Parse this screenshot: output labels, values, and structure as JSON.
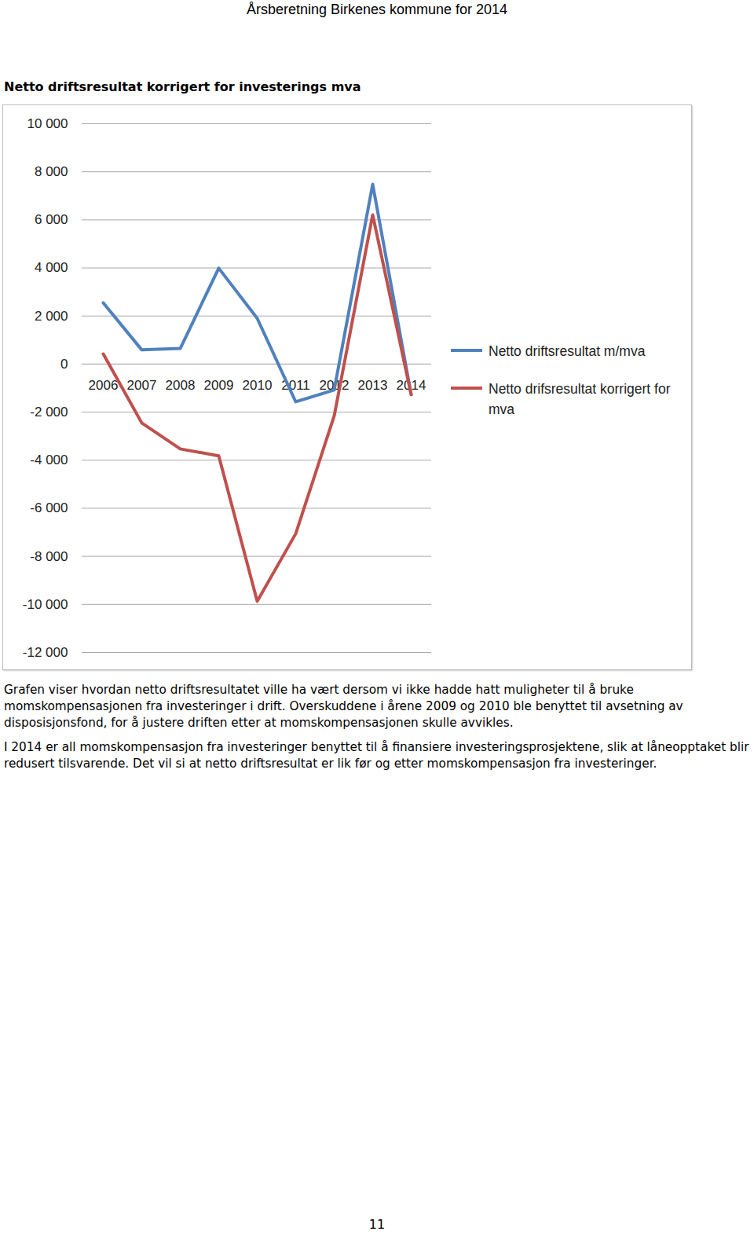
{
  "page_header": "Årsberetning Birkenes kommune for 2014",
  "chart_data": {
    "type": "line",
    "title": "Netto driftsresultat korrigert for investerings mva",
    "categories": [
      "2006",
      "2007",
      "2008",
      "2009",
      "2010",
      "2011",
      "2012",
      "2013",
      "2014"
    ],
    "series": [
      {
        "name": "Netto driftsresultat m/mva",
        "color": "#4f81bd",
        "values": [
          2550,
          590,
          650,
          3990,
          1900,
          -1570,
          -1080,
          7480,
          -1270
        ]
      },
      {
        "name": "Netto drifsresultat korrigert for mva",
        "color": "#c0504d",
        "values": [
          420,
          -2450,
          -3530,
          -3820,
          -9870,
          -7060,
          -2160,
          6210,
          -1270
        ]
      }
    ],
    "ylim": [
      -12000,
      10000
    ],
    "yticks": [
      {
        "value": -12000,
        "label": "-12 000"
      },
      {
        "value": -10000,
        "label": "-10 000"
      },
      {
        "value": -8000,
        "label": "-8 000"
      },
      {
        "value": -6000,
        "label": "-6 000"
      },
      {
        "value": -4000,
        "label": "-4 000"
      },
      {
        "value": -2000,
        "label": "-2 000"
      },
      0,
      {
        "value": 2000,
        "label": "2 000"
      },
      {
        "value": 4000,
        "label": "4 000"
      },
      {
        "value": 6000,
        "label": "6 000"
      },
      {
        "value": 8000,
        "label": "8 000"
      },
      {
        "value": 10000,
        "label": "10 000"
      }
    ],
    "grid": true,
    "legend": "right"
  },
  "paragraphs": [
    "Grafen viser hvordan netto driftsresultatet ville ha vært dersom vi ikke hadde hatt muligheter til å bruke momskompensasjonen fra investeringer i drift. Overskuddene i årene 2009 og 2010 ble benyttet til avsetning av disposisjonsfond, for å justere driften etter at momskompensasjonen skulle avvikles.",
    "I 2014 er all momskompensasjon fra investeringer benyttet til å finansiere investeringsprosjektene, slik at låneopptaket blir redusert tilsvarende. Det vil si at netto driftsresultat er lik før og etter momskompensasjon fra investeringer."
  ],
  "page_number": "11"
}
